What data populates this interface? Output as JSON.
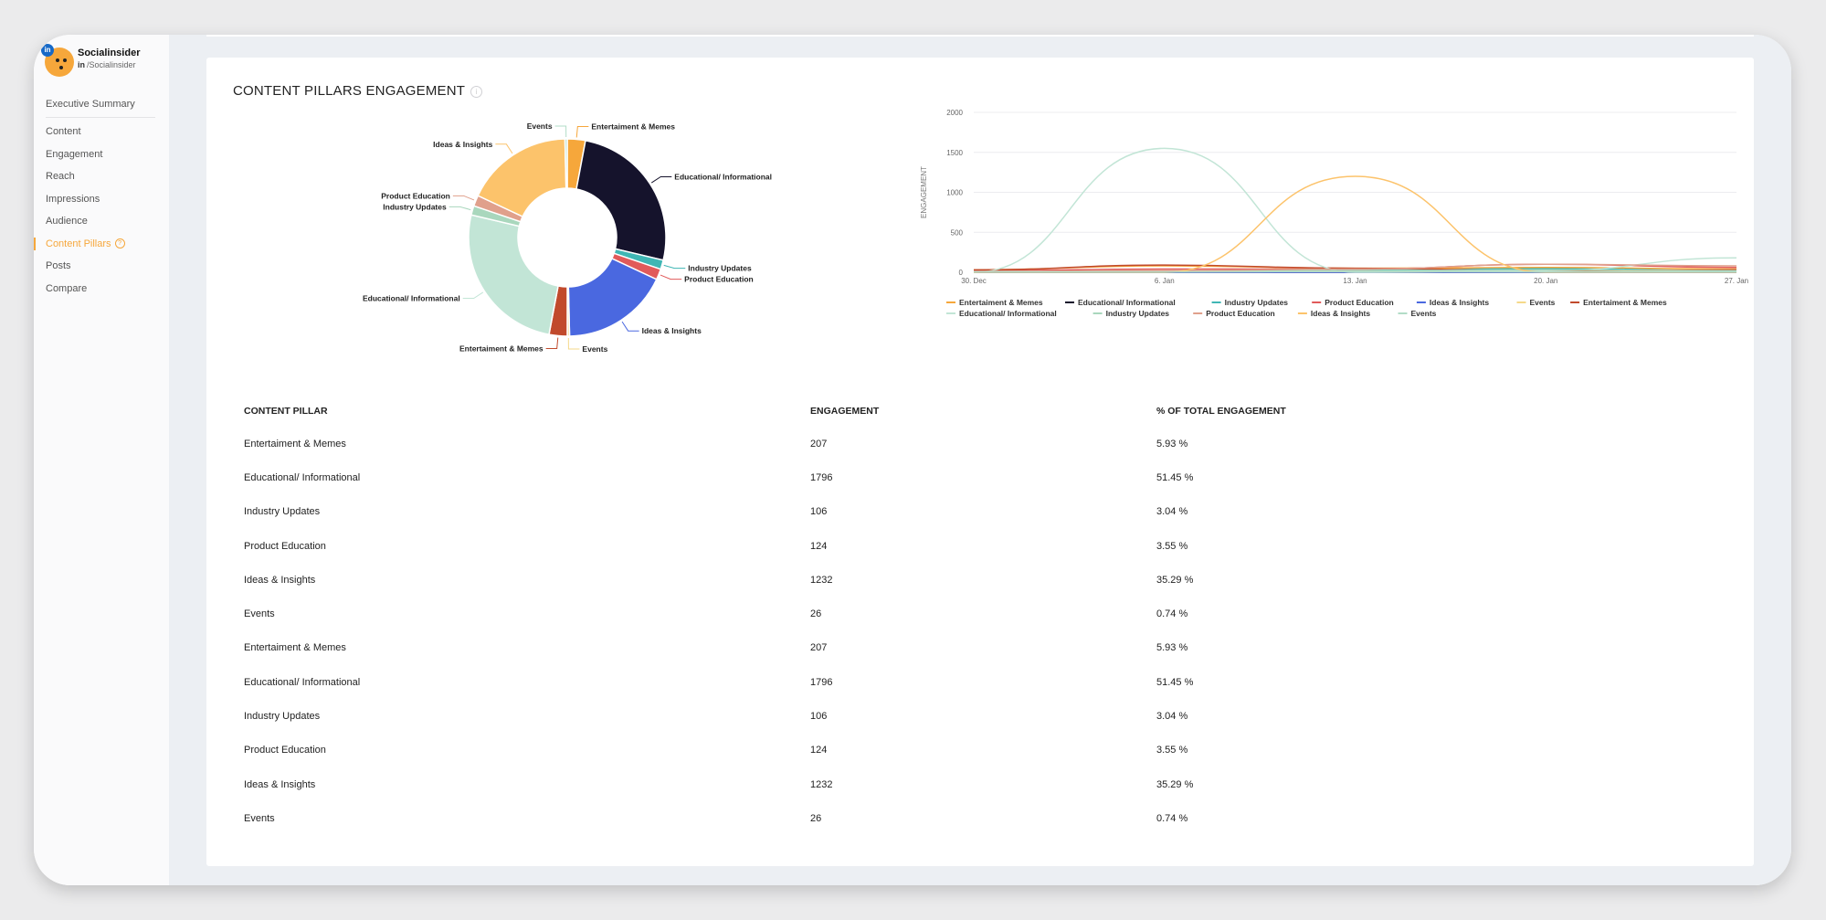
{
  "brand": {
    "name": "Socialinsider",
    "handle": "/Socialinsider",
    "network": "in",
    "badge": "in"
  },
  "nav": [
    {
      "label": "Executive Summary"
    },
    {
      "label": "Content"
    },
    {
      "label": "Engagement"
    },
    {
      "label": "Reach"
    },
    {
      "label": "Impressions"
    },
    {
      "label": "Audience"
    },
    {
      "label": "Content Pillars",
      "active": true
    },
    {
      "label": "Posts"
    },
    {
      "label": "Compare"
    }
  ],
  "card": {
    "title": "CONTENT PILLARS ENGAGEMENT"
  },
  "table": {
    "headers": [
      "CONTENT PILLAR",
      "ENGAGEMENT",
      "% OF TOTAL ENGAGEMENT"
    ],
    "rows": [
      [
        "Entertaiment & Memes",
        "207",
        "5.93 %"
      ],
      [
        "Educational/ Informational",
        "1796",
        "51.45 %"
      ],
      [
        "Industry Updates",
        "106",
        "3.04 %"
      ],
      [
        "Product Education",
        "124",
        "3.55 %"
      ],
      [
        "Ideas & Insights",
        "1232",
        "35.29 %"
      ],
      [
        "Events",
        "26",
        "0.74 %"
      ],
      [
        "Entertaiment & Memes",
        "207",
        "5.93 %"
      ],
      [
        "Educational/ Informational",
        "1796",
        "51.45 %"
      ],
      [
        "Industry Updates",
        "106",
        "3.04 %"
      ],
      [
        "Product Education",
        "124",
        "3.55 %"
      ],
      [
        "Ideas & Insights",
        "1232",
        "35.29 %"
      ],
      [
        "Events",
        "26",
        "0.74 %"
      ]
    ]
  },
  "chart_data": [
    {
      "type": "pie",
      "donut": true,
      "slices": [
        {
          "label": "Entertaiment & Memes",
          "value": 207,
          "color": "#f6a73b"
        },
        {
          "label": "Educational/ Informational",
          "value": 1796,
          "color": "#15132c"
        },
        {
          "label": "Industry Updates",
          "value": 106,
          "color": "#3fb6b4"
        },
        {
          "label": "Product Education",
          "value": 124,
          "color": "#e15a5a"
        },
        {
          "label": "Ideas & Insights",
          "value": 1232,
          "color": "#4a68e0"
        },
        {
          "label": "Events",
          "value": 26,
          "color": "#f5d98a"
        },
        {
          "label": "Entertaiment & Memes",
          "value": 207,
          "color": "#c14a2c"
        },
        {
          "label": "Educational/ Informational",
          "value": 1796,
          "color": "#c2e5d6"
        },
        {
          "label": "Industry Updates",
          "value": 106,
          "color": "#a9d7bd"
        },
        {
          "label": "Product Education",
          "value": 124,
          "color": "#e0a08c"
        },
        {
          "label": "Ideas & Insights",
          "value": 1232,
          "color": "#fcc36b"
        },
        {
          "label": "Events",
          "value": 26,
          "color": "#b2dcc7"
        }
      ]
    },
    {
      "type": "line",
      "ylabel": "ENGAGEMENT",
      "xlabel": "",
      "ylim": [
        0,
        2000
      ],
      "yticks": [
        0,
        500,
        1000,
        1500,
        2000
      ],
      "xlim": [
        "2023-12-30",
        "2024-01-27"
      ],
      "xticks": [
        "30. Dec",
        "6. Jan",
        "13. Jan",
        "20. Jan",
        "27. Jan"
      ],
      "grid": true,
      "legend": "bottom",
      "series": [
        {
          "name": "Entertaiment & Memes",
          "color": "#f6a73b",
          "x": [
            "2023-12-30",
            "2024-01-06",
            "2024-01-13",
            "2024-01-20",
            "2024-01-27"
          ],
          "values": [
            30,
            80,
            50,
            60,
            40
          ]
        },
        {
          "name": "Educational/ Informational",
          "color": "#15132c",
          "x": [
            "2023-12-30",
            "2024-01-06",
            "2024-01-13",
            "2024-01-20",
            "2024-01-27"
          ],
          "values": [
            0,
            0,
            0,
            0,
            0
          ]
        },
        {
          "name": "Industry Updates",
          "color": "#3fb6b4",
          "x": [
            "2023-12-30",
            "2024-01-06",
            "2024-01-13",
            "2024-01-20",
            "2024-01-27"
          ],
          "values": [
            10,
            15,
            25,
            45,
            20
          ]
        },
        {
          "name": "Product Education",
          "color": "#e15a5a",
          "x": [
            "2023-12-30",
            "2024-01-06",
            "2024-01-13",
            "2024-01-20",
            "2024-01-27"
          ],
          "values": [
            20,
            40,
            40,
            100,
            60
          ]
        },
        {
          "name": "Ideas & Insights",
          "color": "#4a68e0",
          "x": [
            "2023-12-30",
            "2024-01-06",
            "2024-01-13",
            "2024-01-20",
            "2024-01-27"
          ],
          "values": [
            0,
            0,
            0,
            0,
            0
          ]
        },
        {
          "name": "Events",
          "color": "#f5d98a",
          "x": [
            "2023-12-30",
            "2024-01-06",
            "2024-01-13",
            "2024-01-20",
            "2024-01-27"
          ],
          "values": [
            5,
            10,
            10,
            15,
            5
          ]
        },
        {
          "name": "Entertaiment & Memes",
          "color": "#c14a2c",
          "x": [
            "2023-12-30",
            "2024-01-06",
            "2024-01-13",
            "2024-01-20",
            "2024-01-27"
          ],
          "values": [
            30,
            90,
            50,
            20,
            30
          ]
        },
        {
          "name": "Educational/ Informational",
          "color": "#c2e5d6",
          "x": [
            "2023-12-30",
            "2024-01-06",
            "2024-01-13",
            "2024-01-20",
            "2024-01-27"
          ],
          "values": [
            0,
            1550,
            0,
            20,
            180
          ]
        },
        {
          "name": "Industry Updates",
          "color": "#a9d7bd",
          "x": [
            "2023-12-30",
            "2024-01-06",
            "2024-01-13",
            "2024-01-20",
            "2024-01-27"
          ],
          "values": [
            10,
            20,
            20,
            30,
            20
          ]
        },
        {
          "name": "Product Education",
          "color": "#e0a08c",
          "x": [
            "2023-12-30",
            "2024-01-06",
            "2024-01-13",
            "2024-01-20",
            "2024-01-27"
          ],
          "values": [
            10,
            20,
            40,
            100,
            80
          ]
        },
        {
          "name": "Ideas & Insights",
          "color": "#fcc36b",
          "x": [
            "2023-12-30",
            "2024-01-06",
            "2024-01-13",
            "2024-01-20",
            "2024-01-27"
          ],
          "values": [
            0,
            0,
            1200,
            0,
            0
          ]
        },
        {
          "name": "Events",
          "color": "#b2dcc7",
          "x": [
            "2023-12-30",
            "2024-01-06",
            "2024-01-13",
            "2024-01-20",
            "2024-01-27"
          ],
          "values": [
            5,
            5,
            10,
            5,
            5
          ]
        }
      ]
    }
  ]
}
